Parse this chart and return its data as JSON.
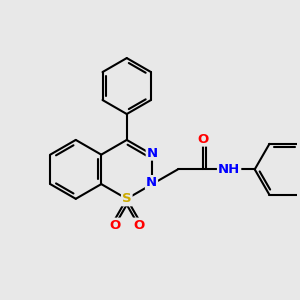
{
  "bg_color": "#e8e8e8",
  "bond_color": "#000000",
  "bond_width": 1.5,
  "atom_colors": {
    "S": "#ccaa00",
    "N": "#0000ff",
    "O": "#ff0000",
    "C": "#000000",
    "H": "#555555"
  },
  "font_size_atom": 9.5
}
